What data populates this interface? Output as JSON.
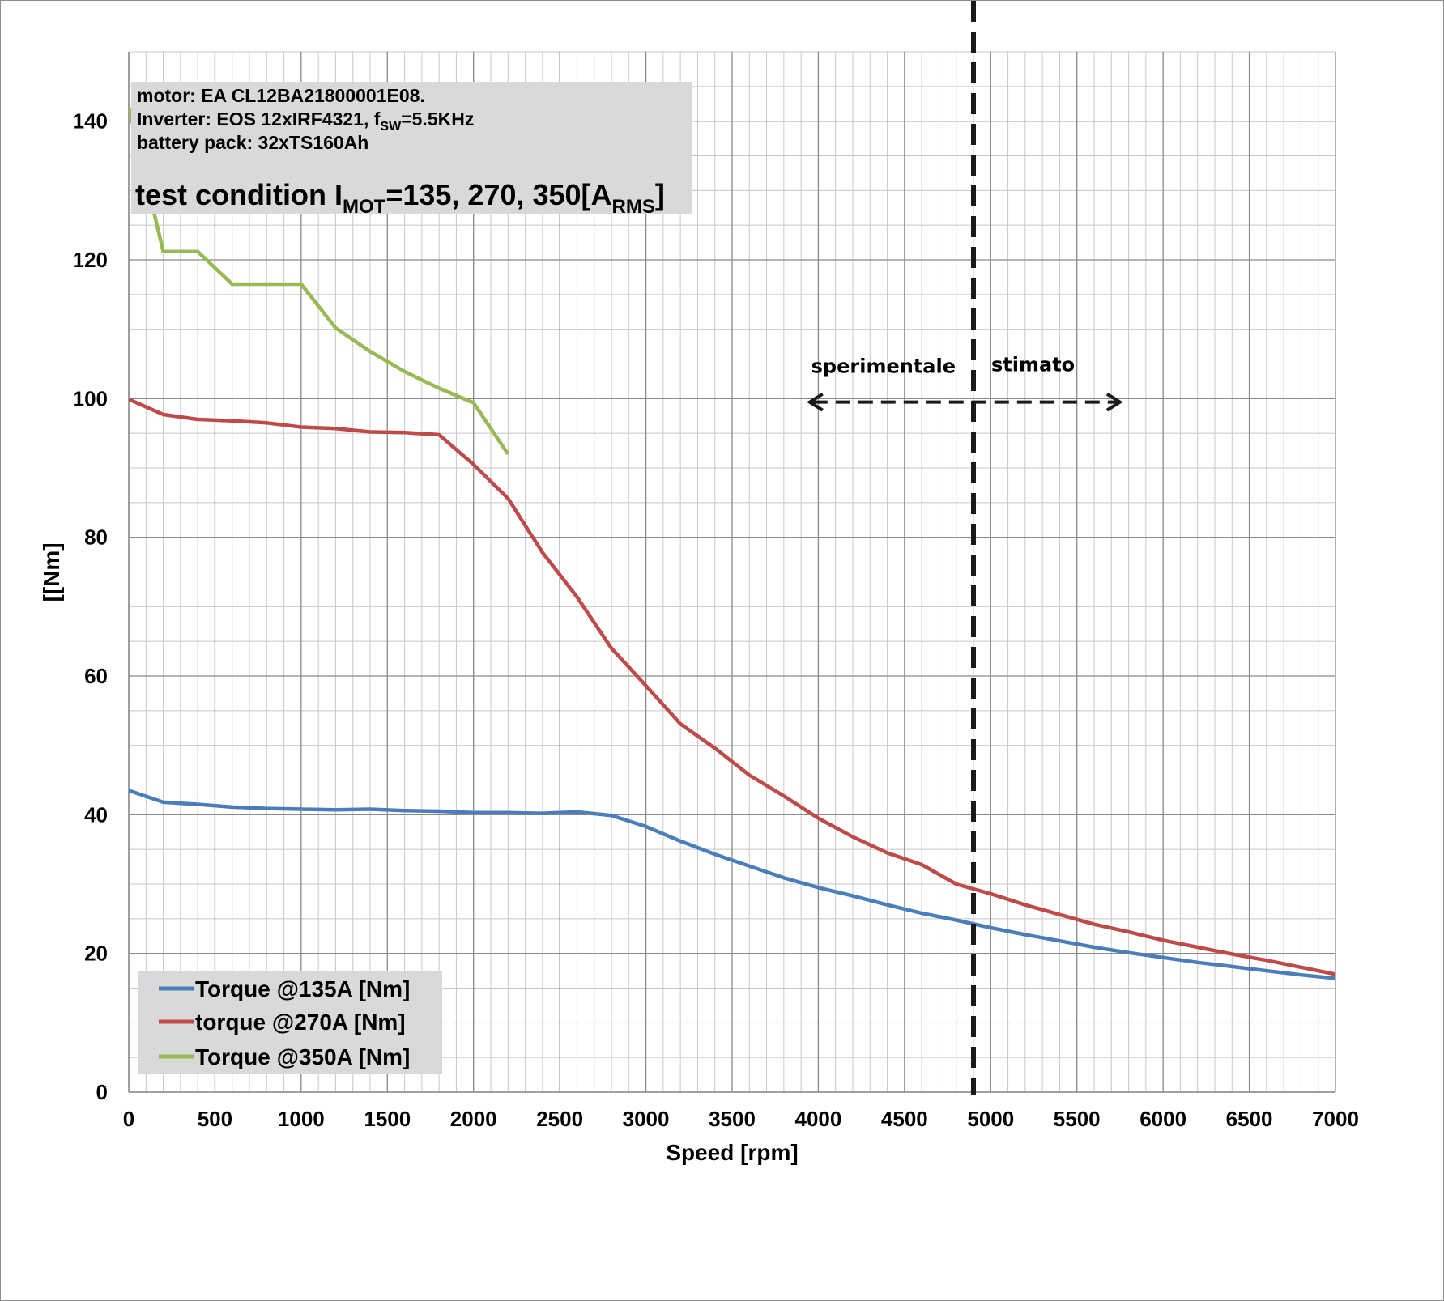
{
  "chart_data": {
    "type": "line",
    "xlabel": "Speed [rpm]",
    "ylabel": "[[Nm]",
    "xlim": [
      0,
      7000
    ],
    "ylim": [
      0,
      150
    ],
    "x_ticks": [
      0,
      500,
      1000,
      1500,
      2000,
      2500,
      3000,
      3500,
      4000,
      4500,
      5000,
      5500,
      6000,
      6500,
      7000
    ],
    "y_ticks": [
      0,
      20,
      40,
      60,
      80,
      100,
      120,
      140
    ],
    "x_minor_step": 100,
    "y_minor_step": 5,
    "grid": true,
    "legend_position": "bottom-left",
    "info_box": {
      "line1": "motor: EA CL12BA21800001E08.",
      "line2_prefix": "Inverter: EOS 12xIRF4321, f",
      "line2_sub": "SW",
      "line2_suffix": "=5.5KHz",
      "line3": "battery pack: 32xTS160Ah",
      "condition_prefix": "test condition I",
      "condition_sub1": "MOT",
      "condition_mid": "=135, 270, 350[A",
      "condition_sub2": "RMS",
      "condition_suffix": "]"
    },
    "divider_x": 4900,
    "region_labels": {
      "left": "sperimentale",
      "right": "stimato"
    },
    "region_arrow": {
      "x_from": 3950,
      "x_to": 5750,
      "y": 99.5
    },
    "series": [
      {
        "name": "Torque @135A [Nm]",
        "color": "#4a7ebb",
        "x": [
          0,
          200,
          400,
          600,
          800,
          1000,
          1200,
          1400,
          1600,
          1800,
          2000,
          2200,
          2400,
          2600,
          2800,
          3000,
          3200,
          3400,
          3600,
          3800,
          4000,
          4200,
          4400,
          4600,
          4800,
          5000,
          5200,
          5400,
          5600,
          5800,
          6000,
          6200,
          6400,
          6600,
          6800,
          7000
        ],
        "y": [
          43.5,
          41.8,
          41.5,
          41.1,
          40.9,
          40.8,
          40.7,
          40.8,
          40.6,
          40.5,
          40.3,
          40.3,
          40.2,
          40.4,
          39.9,
          38.3,
          36.2,
          34.3,
          32.6,
          30.9,
          29.5,
          28.3,
          27.0,
          25.8,
          24.8,
          23.7,
          22.7,
          21.8,
          20.9,
          20.1,
          19.4,
          18.7,
          18.1,
          17.5,
          16.9,
          16.4
        ]
      },
      {
        "name": "torque @270A [Nm]",
        "color": "#be4b48",
        "x": [
          0,
          200,
          400,
          600,
          800,
          1000,
          1200,
          1400,
          1600,
          1800,
          2000,
          2200,
          2400,
          2600,
          2800,
          3000,
          3200,
          3400,
          3600,
          3800,
          4000,
          4200,
          4400,
          4600,
          4800,
          5000,
          5200,
          5400,
          5600,
          5800,
          6000,
          6200,
          6400,
          6600,
          6800,
          7000
        ],
        "y": [
          99.9,
          97.7,
          97.0,
          96.8,
          96.5,
          95.9,
          95.7,
          95.2,
          95.1,
          94.8,
          90.5,
          85.6,
          77.8,
          71.4,
          64.0,
          58.6,
          53.1,
          49.6,
          45.7,
          42.7,
          39.5,
          36.8,
          34.5,
          32.8,
          30.0,
          28.6,
          27.0,
          25.6,
          24.2,
          23.1,
          21.9,
          20.9,
          19.9,
          19.0,
          18.0,
          17.0
        ]
      },
      {
        "name": "Torque @350A [Nm]",
        "color": "#98b954",
        "x": [
          0,
          200,
          400,
          600,
          800,
          1000,
          1200,
          1400,
          1600,
          1800,
          2000,
          2200
        ],
        "y": [
          142.0,
          121.2,
          121.2,
          116.5,
          116.5,
          116.5,
          110.2,
          106.8,
          103.9,
          101.5,
          99.4,
          92.0
        ]
      }
    ]
  }
}
